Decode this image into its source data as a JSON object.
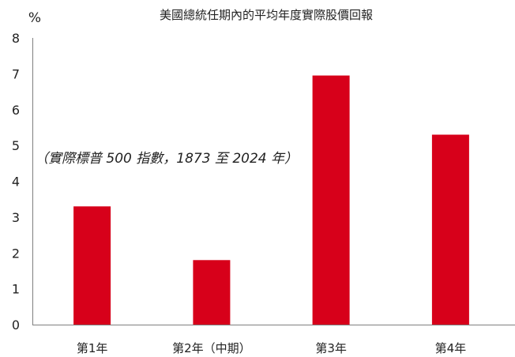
{
  "chart_data": {
    "type": "bar",
    "title": "美國總統任期內的平均年度實際股價回報",
    "annotation": "（實際標普 500 指數，1873 至 2024 年）",
    "ylabel": "%",
    "xlabel": "",
    "categories": [
      "第1年",
      "第2年（中期）",
      "第3年",
      "第4年"
    ],
    "values": [
      3.3,
      1.8,
      6.95,
      5.3
    ],
    "ylim": [
      0,
      8
    ],
    "yticks": [
      "0",
      "1",
      "2",
      "3",
      "4",
      "5",
      "6",
      "7",
      "8"
    ],
    "grid": false,
    "legend": "none",
    "bar_color": "#d7001a",
    "axis_color": "#7f7f7f"
  }
}
